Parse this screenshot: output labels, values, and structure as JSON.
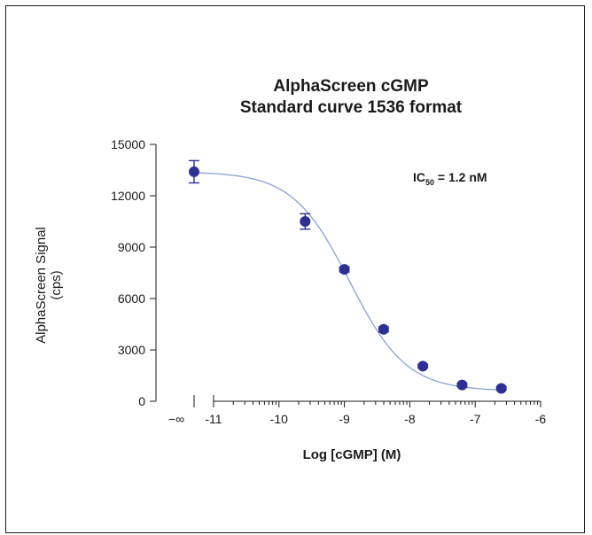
{
  "chart_data": {
    "type": "scatter",
    "title": "AlphaScreen cGMP",
    "subtitle": "Standard curve 1536 format",
    "xlabel": "Log [cGMP] (M)",
    "ylabel": "AlphaScreen Signal",
    "ylabel_unit": "(cps)",
    "xlim": [
      -11,
      -6
    ],
    "ylim": [
      0,
      15000
    ],
    "y_ticks": [
      0,
      3000,
      6000,
      9000,
      12000,
      15000
    ],
    "y_tick_labels": [
      "0",
      "3000",
      "6000",
      "9000",
      "12000",
      "15000"
    ],
    "x_ticks": [
      -11,
      -10,
      -9,
      -8,
      -7,
      -6
    ],
    "x_tick_labels": [
      "-11",
      "-10",
      "-9",
      "-8",
      "-7",
      "-6"
    ],
    "x_zero_label": "−∞",
    "x_scale_note": "axis break between zero-concentration point and -11",
    "annotation": {
      "prefix": "IC",
      "sub": "50",
      "suffix": " = 1.2 nM"
    },
    "series": [
      {
        "points": [
          {
            "x": "-inf",
            "y": 13400,
            "err": 650
          },
          {
            "x": -9.6,
            "y": 10500,
            "err": 450
          },
          {
            "x": -9.0,
            "y": 7700,
            "err": 150
          },
          {
            "x": -8.4,
            "y": 4200,
            "err": 150
          },
          {
            "x": -7.8,
            "y": 2050,
            "err": 100
          },
          {
            "x": -7.2,
            "y": 950,
            "err": 100
          },
          {
            "x": -6.6,
            "y": 750,
            "err": 100
          }
        ],
        "fit": {
          "top": 13400,
          "bottom": 600,
          "log_ic50": -8.92,
          "hill": -1.0
        },
        "marker_color": "#2e3192",
        "line_color": "#8aa0d8"
      }
    ],
    "grid": false,
    "legend": "none"
  }
}
